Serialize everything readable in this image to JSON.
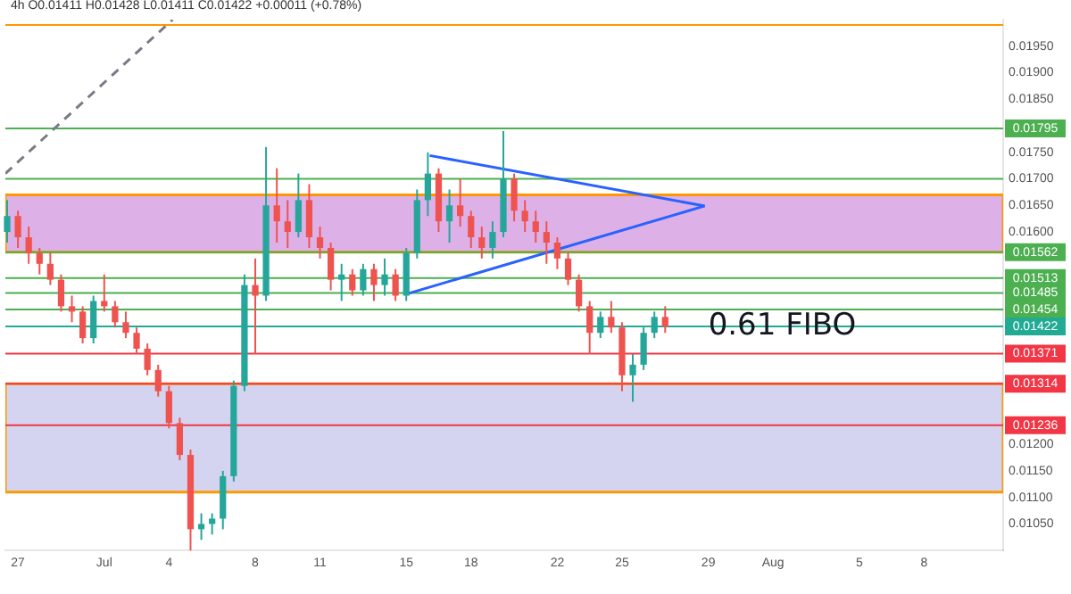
{
  "chart_data": {
    "type": "candlestick",
    "title": "4h O0.01411 H0.01428 L0.01411 C0.01422 +0.00011 (+0.78%)",
    "x": [
      "--06-26T12:00",
      "--06-27T00:00",
      "--06-27T12:00",
      "--06-28T00:00",
      "--06-28T12:00",
      "--06-29T00:00",
      "--06-29T12:00",
      "--06-30T00:00",
      "--06-30T12:00",
      "--07-01T00:00",
      "--07-01T12:00",
      "--07-02T00:00",
      "--07-02T12:00",
      "--07-03T00:00",
      "--07-03T12:00",
      "--07-04T00:00",
      "--07-04T12:00",
      "--07-05T00:00",
      "--07-05T12:00",
      "--07-06T00:00",
      "--07-06T12:00",
      "--07-07T00:00",
      "--07-07T12:00",
      "--07-08T00:00",
      "--07-08T12:00",
      "--07-09T00:00",
      "--07-09T12:00",
      "--07-10T00:00",
      "--07-10T12:00",
      "--07-11T00:00",
      "--07-11T12:00",
      "--07-12T00:00",
      "--07-12T12:00",
      "--07-13T00:00",
      "--07-13T12:00",
      "--07-14T00:00",
      "--07-14T12:00",
      "--07-15T00:00",
      "--07-15T12:00",
      "--07-16T00:00",
      "--07-16T12:00",
      "--07-17T00:00",
      "--07-17T12:00",
      "--07-18T00:00",
      "--07-18T12:00",
      "--07-19T00:00",
      "--07-19T12:00",
      "--07-20T00:00",
      "--07-20T12:00",
      "--07-21T00:00",
      "--07-21T12:00",
      "--07-22T00:00",
      "--07-22T12:00",
      "--07-23T00:00",
      "--07-23T12:00",
      "--07-24T00:00",
      "--07-24T12:00",
      "--07-25T00:00",
      "--07-25T12:00",
      "--07-26T00:00",
      "--07-26T12:00",
      "--07-27T00:00"
    ],
    "ohlc": [
      [
        0.016,
        0.0166,
        0.0158,
        0.0163
      ],
      [
        0.0163,
        0.0164,
        0.0157,
        0.0159
      ],
      [
        0.0159,
        0.0161,
        0.0154,
        0.0156
      ],
      [
        0.0156,
        0.0157,
        0.0152,
        0.0154
      ],
      [
        0.0154,
        0.0156,
        0.015,
        0.0151
      ],
      [
        0.0151,
        0.0152,
        0.0145,
        0.0146
      ],
      [
        0.0146,
        0.0148,
        0.0143,
        0.0145
      ],
      [
        0.0145,
        0.0146,
        0.0139,
        0.014
      ],
      [
        0.014,
        0.0148,
        0.0139,
        0.0147
      ],
      [
        0.0147,
        0.0152,
        0.0145,
        0.0146
      ],
      [
        0.0146,
        0.0147,
        0.0142,
        0.0143
      ],
      [
        0.0143,
        0.0145,
        0.014,
        0.0141
      ],
      [
        0.0141,
        0.0142,
        0.0137,
        0.0138
      ],
      [
        0.0138,
        0.0139,
        0.0133,
        0.0134
      ],
      [
        0.0134,
        0.0135,
        0.0129,
        0.013
      ],
      [
        0.013,
        0.0131,
        0.0123,
        0.0124
      ],
      [
        0.0124,
        0.0125,
        0.0117,
        0.0118
      ],
      [
        0.0118,
        0.0119,
        0.01,
        0.0104
      ],
      [
        0.0104,
        0.0107,
        0.0102,
        0.0105
      ],
      [
        0.0105,
        0.0107,
        0.0103,
        0.0106
      ],
      [
        0.0106,
        0.0115,
        0.0104,
        0.0114
      ],
      [
        0.0114,
        0.0132,
        0.0113,
        0.0131
      ],
      [
        0.0131,
        0.0152,
        0.013,
        0.015
      ],
      [
        0.015,
        0.0155,
        0.0137,
        0.0148
      ],
      [
        0.0148,
        0.0176,
        0.0147,
        0.0165
      ],
      [
        0.0165,
        0.0172,
        0.0158,
        0.0162
      ],
      [
        0.0162,
        0.0166,
        0.0157,
        0.016
      ],
      [
        0.016,
        0.0171,
        0.0159,
        0.0166
      ],
      [
        0.0166,
        0.0169,
        0.0157,
        0.0159
      ],
      [
        0.0159,
        0.0161,
        0.0155,
        0.0157
      ],
      [
        0.0157,
        0.0158,
        0.0149,
        0.0151
      ],
      [
        0.0151,
        0.0154,
        0.0147,
        0.0152
      ],
      [
        0.0152,
        0.0153,
        0.0148,
        0.0149
      ],
      [
        0.0149,
        0.0154,
        0.0148,
        0.0153
      ],
      [
        0.0153,
        0.0154,
        0.0147,
        0.015
      ],
      [
        0.015,
        0.0155,
        0.0148,
        0.0152
      ],
      [
        0.0152,
        0.0153,
        0.0147,
        0.0148
      ],
      [
        0.0148,
        0.0157,
        0.0147,
        0.0156
      ],
      [
        0.0156,
        0.0168,
        0.0155,
        0.0166
      ],
      [
        0.0166,
        0.0175,
        0.0163,
        0.0171
      ],
      [
        0.0171,
        0.0172,
        0.016,
        0.0162
      ],
      [
        0.0162,
        0.0168,
        0.0158,
        0.0165
      ],
      [
        0.0165,
        0.017,
        0.0161,
        0.0163
      ],
      [
        0.0163,
        0.0164,
        0.0157,
        0.0159
      ],
      [
        0.0159,
        0.0161,
        0.0155,
        0.0157
      ],
      [
        0.0157,
        0.0162,
        0.0155,
        0.016
      ],
      [
        0.016,
        0.0179,
        0.0159,
        0.017
      ],
      [
        0.017,
        0.0171,
        0.0162,
        0.0164
      ],
      [
        0.0164,
        0.0166,
        0.016,
        0.0162
      ],
      [
        0.0162,
        0.0164,
        0.0158,
        0.016
      ],
      [
        0.016,
        0.0162,
        0.0154,
        0.0158
      ],
      [
        0.0158,
        0.0159,
        0.0153,
        0.0155
      ],
      [
        0.0155,
        0.0156,
        0.015,
        0.0151
      ],
      [
        0.0151,
        0.0152,
        0.0145,
        0.0146
      ],
      [
        0.0146,
        0.0147,
        0.0137,
        0.0141
      ],
      [
        0.0141,
        0.0145,
        0.014,
        0.0144
      ],
      [
        0.0144,
        0.0147,
        0.0141,
        0.0142
      ],
      [
        0.0142,
        0.0143,
        0.013,
        0.0133
      ],
      [
        0.0133,
        0.0137,
        0.0128,
        0.0135
      ],
      [
        0.0135,
        0.0142,
        0.0134,
        0.0141
      ],
      [
        0.0141,
        0.0145,
        0.014,
        0.0144
      ],
      [
        0.0144,
        0.0146,
        0.0141,
        0.01422
      ]
    ],
    "series": [
      {
        "type": "line",
        "color": "#2962ff",
        "x": [
          "--07-16T02:00",
          "--07-28T20:00"
        ],
        "values": [
          0.01744,
          0.01649
        ]
      },
      {
        "type": "line",
        "color": "#2962ff",
        "x": [
          "--07-15T02:00",
          "--07-28T20:00"
        ],
        "values": [
          0.01484,
          0.01649
        ]
      },
      {
        "type": "line",
        "color": "#787b86",
        "line_style": "dashed",
        "x": [
          "--06-26T10:00",
          "--07-04T04:00"
        ],
        "values": [
          0.0171,
          0.02
        ]
      }
    ],
    "xlim": [
      "--06-26T10:00",
      "--08-11T16:00"
    ],
    "xticks": [
      {
        "value": "--06-27",
        "label": "27"
      },
      {
        "value": "--07-01",
        "label": "Jul"
      },
      {
        "value": "--07-04",
        "label": "4"
      },
      {
        "value": "--07-08",
        "label": "8"
      },
      {
        "value": "--07-11",
        "label": "11"
      },
      {
        "value": "--07-15",
        "label": "15"
      },
      {
        "value": "--07-18",
        "label": "18"
      },
      {
        "value": "--07-22",
        "label": "22"
      },
      {
        "value": "--07-25",
        "label": "25"
      },
      {
        "value": "--07-29",
        "label": "29"
      },
      {
        "value": "--08-01",
        "label": "Aug"
      },
      {
        "value": "--08-05",
        "label": "5"
      },
      {
        "value": "--08-08",
        "label": "8"
      }
    ],
    "ylim": [
      0.01,
      0.02
    ],
    "yticks": [
      {
        "value": 0.0105,
        "label": "0.01050"
      },
      {
        "value": 0.011,
        "label": "0.01100"
      },
      {
        "value": 0.0115,
        "label": "0.01150"
      },
      {
        "value": 0.012,
        "label": "0.01200"
      },
      {
        "value": 0.016,
        "label": "0.01600"
      },
      {
        "value": 0.0165,
        "label": "0.01650"
      },
      {
        "value": 0.017,
        "label": "0.01700"
      },
      {
        "value": 0.0175,
        "label": "0.01750"
      },
      {
        "value": 0.0185,
        "label": "0.01850"
      },
      {
        "value": 0.019,
        "label": "0.01900"
      },
      {
        "value": 0.0195,
        "label": "0.01950"
      }
    ],
    "ref_lines": [
      {
        "axis": "y",
        "value": 0.0199,
        "label": null,
        "color": "#ff9800"
      },
      {
        "axis": "y",
        "value": 0.01795,
        "label": "0.01795",
        "color": "#4caf50"
      },
      {
        "axis": "y",
        "value": 0.017,
        "label": null,
        "color": "#4caf50"
      },
      {
        "axis": "y",
        "value": 0.01562,
        "label": "0.01562",
        "color": "#4caf50"
      },
      {
        "axis": "y",
        "value": 0.01513,
        "label": "0.01513",
        "color": "#4caf50"
      },
      {
        "axis": "y",
        "value": 0.01485,
        "label": "0.01485",
        "color": "#4caf50"
      },
      {
        "axis": "y",
        "value": 0.01454,
        "label": "0.01454",
        "color": "#4caf50"
      },
      {
        "axis": "y",
        "value": 0.01422,
        "label": "0.01422",
        "color": "#22ab94"
      },
      {
        "axis": "y",
        "value": 0.01371,
        "label": "0.01371",
        "color": "#f23645"
      },
      {
        "axis": "y",
        "value": 0.01314,
        "label": "0.01314",
        "color": "#f23645"
      },
      {
        "axis": "y",
        "value": 0.01236,
        "label": "0.01236",
        "color": "#f23645"
      }
    ],
    "bands": [
      {
        "axis": "y",
        "from": 0.01562,
        "to": 0.0167,
        "label": null,
        "color": "#c77dd8"
      },
      {
        "axis": "y",
        "from": 0.0111,
        "to": 0.01314,
        "label": null,
        "color": "#b8b8e8"
      }
    ],
    "annotations": [
      {
        "text": "0.61 FIBO",
        "x": "--07-29T00:00",
        "y": 0.01422
      }
    ],
    "grid": false,
    "legend": false
  }
}
